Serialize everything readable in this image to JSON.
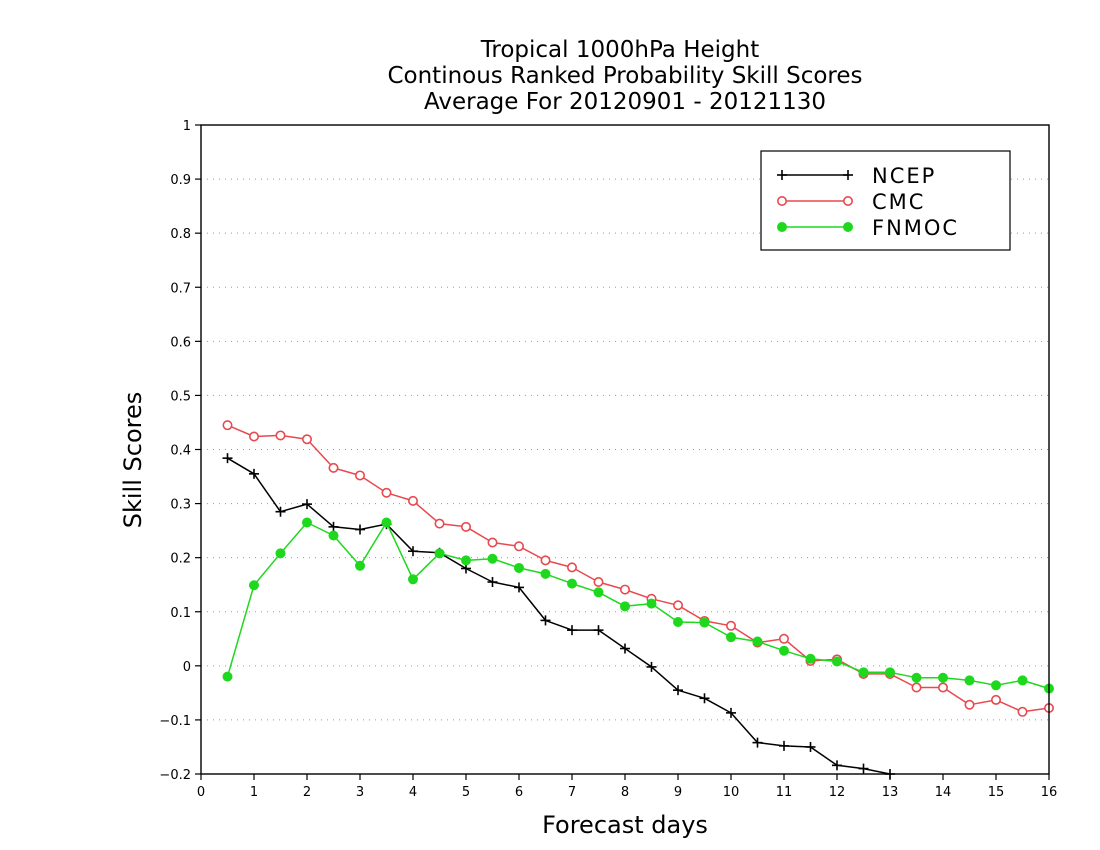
{
  "chart_data": {
    "type": "line",
    "title": [
      "Tropical 1000hPa Height",
      "Continous Ranked Probability Skill Scores",
      "Average For 20120901 - 20121130"
    ],
    "xlabel": "Forecast days",
    "ylabel": "Skill Scores",
    "xlim": [
      0,
      16
    ],
    "ylim": [
      -0.2,
      1
    ],
    "xticks": [
      0,
      1,
      2,
      3,
      4,
      5,
      6,
      7,
      8,
      9,
      10,
      11,
      12,
      13,
      14,
      15,
      16
    ],
    "xtick_labels": [
      "0",
      "1",
      "2",
      "3",
      "4",
      "5",
      "6",
      "7",
      "8",
      "9",
      "10",
      "11",
      "12",
      "13",
      "14",
      "15",
      "16"
    ],
    "yticks": [
      -0.2,
      -0.1,
      0,
      0.1,
      0.2,
      0.3,
      0.4,
      0.5,
      0.6,
      0.7,
      0.8,
      0.9,
      1
    ],
    "ytick_labels": [
      "−0.2",
      "−0.1",
      "0",
      "0.1",
      "0.2",
      "0.3",
      "0.4",
      "0.5",
      "0.6",
      "0.7",
      "0.8",
      "0.9",
      "1"
    ],
    "grid": "horizontal dotted",
    "legend_position": "top-right",
    "series": [
      {
        "name": "NCEP",
        "color": "#000000",
        "marker": "plus",
        "x": [
          0.5,
          1,
          1.5,
          2,
          2.5,
          3,
          3.5,
          4,
          4.5,
          5,
          5.5,
          6,
          6.5,
          7,
          7.5,
          8,
          8.5,
          9,
          9.5,
          10,
          10.5,
          11,
          11.5,
          12,
          12.5,
          13
        ],
        "values": [
          0.384,
          0.355,
          0.285,
          0.299,
          0.257,
          0.252,
          0.262,
          0.212,
          0.209,
          0.18,
          0.155,
          0.145,
          0.084,
          0.066,
          0.066,
          0.032,
          -0.002,
          -0.045,
          -0.06,
          -0.087,
          -0.142,
          -0.148,
          -0.15,
          -0.184,
          -0.19,
          -0.2
        ]
      },
      {
        "name": "CMC",
        "color": "#e8494e",
        "marker": "open-circle",
        "x": [
          0.5,
          1,
          1.5,
          2,
          2.5,
          3,
          3.5,
          4,
          4.5,
          5,
          5.5,
          6,
          6.5,
          7,
          7.5,
          8,
          8.5,
          9,
          9.5,
          10,
          10.5,
          11,
          11.5,
          12,
          12.5,
          13,
          13.5,
          14,
          14.5,
          15,
          15.5,
          16
        ],
        "values": [
          0.445,
          0.424,
          0.426,
          0.419,
          0.366,
          0.352,
          0.32,
          0.305,
          0.263,
          0.257,
          0.228,
          0.221,
          0.195,
          0.182,
          0.155,
          0.141,
          0.124,
          0.112,
          0.083,
          0.074,
          0.043,
          0.05,
          0.009,
          0.012,
          -0.015,
          -0.015,
          -0.04,
          -0.04,
          -0.072,
          -0.063,
          -0.085,
          -0.078
        ]
      },
      {
        "name": "FNMOC",
        "color": "#1ed81e",
        "marker": "filled-circle",
        "x": [
          0.5,
          1,
          1.5,
          2,
          2.5,
          3,
          3.5,
          4,
          4.5,
          5,
          5.5,
          6,
          6.5,
          7,
          7.5,
          8,
          8.5,
          9,
          9.5,
          10,
          10.5,
          11,
          11.5,
          12,
          12.5,
          13,
          13.5,
          14,
          14.5,
          15,
          15.5,
          16
        ],
        "values": [
          -0.02,
          0.149,
          0.208,
          0.265,
          0.241,
          0.185,
          0.265,
          0.16,
          0.208,
          0.195,
          0.198,
          0.181,
          0.17,
          0.152,
          0.136,
          0.11,
          0.115,
          0.081,
          0.08,
          0.053,
          0.045,
          0.028,
          0.013,
          0.008,
          -0.012,
          -0.012,
          -0.022,
          -0.022,
          -0.027,
          -0.036,
          -0.027,
          -0.042
        ]
      }
    ]
  }
}
